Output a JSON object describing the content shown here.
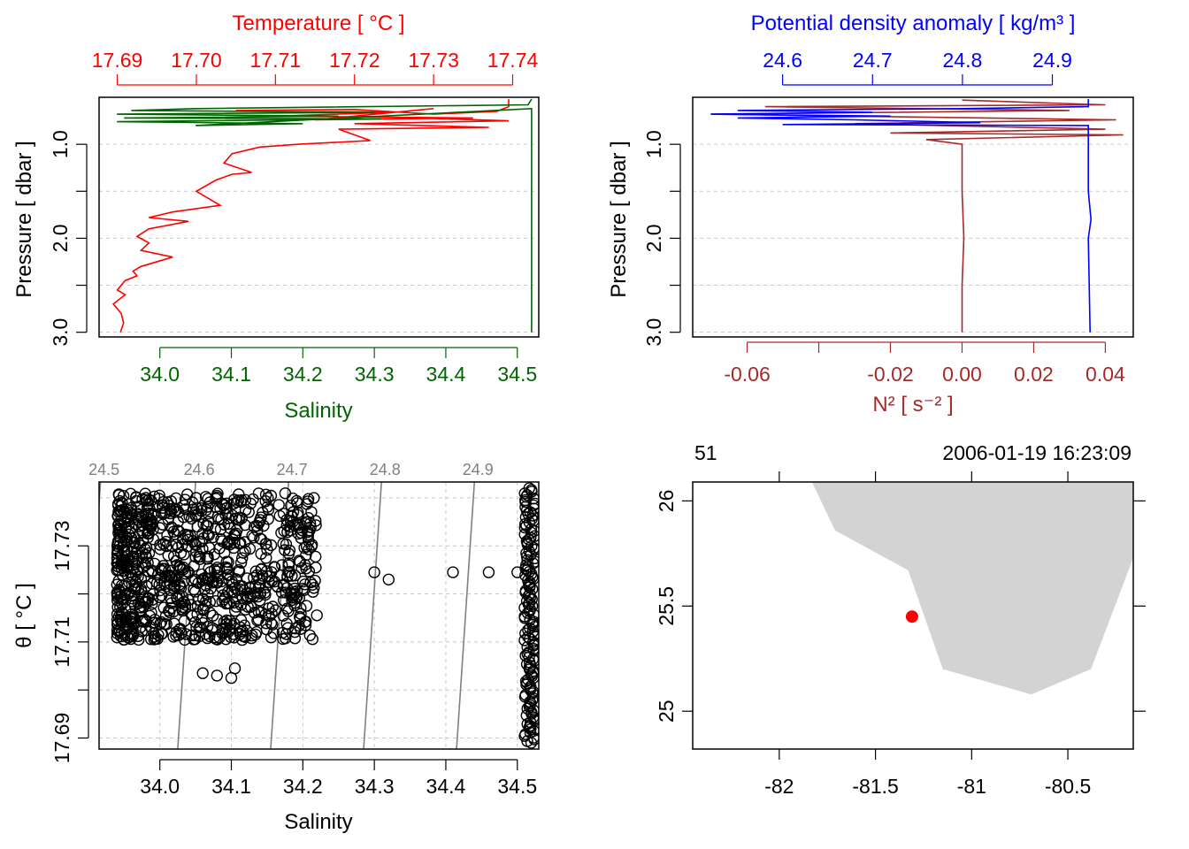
{
  "colors": {
    "temperature": "#ff0000",
    "salinity": "#006400",
    "density": "#0000ff",
    "n2": "#a52a2a",
    "isopycnal": "#808080",
    "land": "#d3d3d3",
    "station": "#ff0000",
    "grid": "#c8c8c8",
    "text": "#000000"
  },
  "chart_data": [
    {
      "type": "line",
      "panel": "T-S profile",
      "top_axis_label": "Temperature [ °C ]",
      "top_ticks": [
        "17.69",
        "17.70",
        "17.71",
        "17.72",
        "17.73",
        "17.74"
      ],
      "top_range": [
        17.6877,
        17.7433
      ],
      "bottom_axis_label": "Salinity",
      "bottom_ticks": [
        "34.0",
        "34.1",
        "34.2",
        "34.3",
        "34.4",
        "34.5"
      ],
      "bottom_range": [
        33.915,
        34.53
      ],
      "ylabel": "Pressure [ dbar ]",
      "y_ticks": [
        "1.0",
        "2.0",
        "3.0"
      ],
      "ylim": [
        3.05,
        0.5
      ],
      "series": [
        {
          "variable": "temperature",
          "points": [
            [
              17.7395,
              0.52
            ],
            [
              17.7395,
              0.6
            ],
            [
              17.738,
              0.65
            ],
            [
              17.73,
              0.68
            ],
            [
              17.72,
              0.63
            ],
            [
              17.705,
              0.64
            ],
            [
              17.725,
              0.66
            ],
            [
              17.71,
              0.7
            ],
            [
              17.735,
              0.72
            ],
            [
              17.715,
              0.74
            ],
            [
              17.73,
              0.62
            ],
            [
              17.72,
              0.7
            ],
            [
              17.7395,
              0.75
            ],
            [
              17.72,
              0.78
            ],
            [
              17.737,
              0.82
            ],
            [
              17.718,
              0.84
            ],
            [
              17.722,
              0.96
            ],
            [
              17.713,
              1.0
            ],
            [
              17.708,
              1.03
            ],
            [
              17.7045,
              1.1
            ],
            [
              17.7035,
              1.2
            ],
            [
              17.707,
              1.3
            ],
            [
              17.7045,
              1.32
            ],
            [
              17.7025,
              1.38
            ],
            [
              17.7,
              1.5
            ],
            [
              17.703,
              1.65
            ],
            [
              17.697,
              1.72
            ],
            [
              17.694,
              1.78
            ],
            [
              17.699,
              1.82
            ],
            [
              17.694,
              1.9
            ],
            [
              17.6925,
              1.98
            ],
            [
              17.694,
              2.05
            ],
            [
              17.693,
              2.13
            ],
            [
              17.697,
              2.2
            ],
            [
              17.693,
              2.3
            ],
            [
              17.692,
              2.35
            ],
            [
              17.6925,
              2.4
            ],
            [
              17.691,
              2.45
            ],
            [
              17.69,
              2.55
            ],
            [
              17.691,
              2.6
            ],
            [
              17.6895,
              2.7
            ],
            [
              17.6905,
              2.8
            ],
            [
              17.6908,
              2.9
            ],
            [
              17.6904,
              3.0
            ]
          ]
        },
        {
          "variable": "salinity",
          "points": [
            [
              34.52,
              0.52
            ],
            [
              34.515,
              0.58
            ],
            [
              34.05,
              0.62
            ],
            [
              33.96,
              0.64
            ],
            [
              34.3,
              0.66
            ],
            [
              33.94,
              0.68
            ],
            [
              34.25,
              0.7
            ],
            [
              33.95,
              0.72
            ],
            [
              34.31,
              0.73
            ],
            [
              33.94,
              0.76
            ],
            [
              34.2,
              0.78
            ],
            [
              34.05,
              0.8
            ],
            [
              34.52,
              0.62
            ],
            [
              34.52,
              0.7
            ],
            [
              34.52,
              1.0
            ],
            [
              34.52,
              1.5
            ],
            [
              34.52,
              2.0
            ],
            [
              34.52,
              2.5
            ],
            [
              34.52,
              3.0
            ]
          ]
        }
      ]
    },
    {
      "type": "line",
      "panel": "density and buoyancy frequency profile",
      "top_axis_label": "Potential density anomaly [ kg/m³ ]",
      "top_ticks": [
        "24.6",
        "24.7",
        "24.8",
        "24.9"
      ],
      "top_range": [
        24.5,
        24.99
      ],
      "bottom_axis_label": "N² [ s⁻² ]",
      "bottom_ticks": [
        "-0.06",
        "-0.02",
        "0.00",
        "0.02",
        "0.04"
      ],
      "bottom_range": [
        -0.0752,
        0.0478
      ],
      "ylabel": "Pressure [ dbar ]",
      "y_ticks": [
        "1.0",
        "2.0",
        "3.0"
      ],
      "ylim": [
        3.05,
        0.5
      ],
      "series": [
        {
          "variable": "potential density anomaly",
          "points": [
            [
              24.94,
              0.52
            ],
            [
              24.94,
              0.6
            ],
            [
              24.8,
              0.62
            ],
            [
              24.55,
              0.64
            ],
            [
              24.7,
              0.66
            ],
            [
              24.52,
              0.68
            ],
            [
              24.72,
              0.7
            ],
            [
              24.55,
              0.72
            ],
            [
              24.68,
              0.74
            ],
            [
              24.82,
              0.77
            ],
            [
              24.6,
              0.79
            ],
            [
              24.94,
              0.8
            ],
            [
              24.94,
              1.0
            ],
            [
              24.94,
              1.5
            ],
            [
              24.943,
              1.8
            ],
            [
              24.94,
              2.0
            ],
            [
              24.941,
              2.5
            ],
            [
              24.942,
              3.0
            ]
          ]
        },
        {
          "variable": "N2",
          "points": [
            [
              0.0,
              0.53
            ],
            [
              0.04,
              0.58
            ],
            [
              -0.055,
              0.6
            ],
            [
              0.03,
              0.64
            ],
            [
              -0.07,
              0.68
            ],
            [
              0.043,
              0.74
            ],
            [
              -0.03,
              0.78
            ],
            [
              0.04,
              0.84
            ],
            [
              -0.02,
              0.88
            ],
            [
              0.045,
              0.9
            ],
            [
              -0.01,
              0.95
            ],
            [
              0.0,
              1.0
            ],
            [
              0.0,
              1.5
            ],
            [
              0.0005,
              2.0
            ],
            [
              0.0,
              2.5
            ],
            [
              0.0,
              3.0
            ]
          ]
        }
      ]
    },
    {
      "type": "scatter",
      "panel": "T-S diagram",
      "xlabel": "Salinity",
      "ylabel": "θ [ °C ]",
      "x_ticks": [
        "34.0",
        "34.1",
        "34.2",
        "34.3",
        "34.4",
        "34.5"
      ],
      "y_ticks": [
        "17.69",
        "17.71",
        "17.73"
      ],
      "xlim": [
        33.915,
        34.53
      ],
      "ylim": [
        17.6877,
        17.7433
      ],
      "isopycnal_labels": [
        "24.5",
        "24.6",
        "24.7",
        "24.8",
        "24.9"
      ],
      "isopycnals": [
        {
          "label": "24.5",
          "bottom_salinity": 33.892,
          "top_salinity": 33.917
        },
        {
          "label": "24.6",
          "bottom_salinity": 34.025,
          "top_salinity": 34.05
        },
        {
          "label": "24.7",
          "bottom_salinity": 34.155,
          "top_salinity": 34.18
        },
        {
          "label": "24.8",
          "bottom_salinity": 34.285,
          "top_salinity": 34.31
        },
        {
          "label": "24.9",
          "bottom_salinity": 34.415,
          "top_salinity": 34.44
        }
      ],
      "point_clusters": [
        {
          "salinity_range": [
            33.94,
            34.22
          ],
          "temperature_range": [
            17.705,
            17.741
          ],
          "count": 900
        },
        {
          "salinity_range": [
            34.51,
            34.525
          ],
          "temperature_range": [
            17.689,
            17.742
          ],
          "count": 150
        }
      ],
      "points_notable": [
        [
          34.3,
          17.7245
        ],
        [
          34.32,
          17.723
        ],
        [
          34.41,
          17.7245
        ],
        [
          34.46,
          17.7245
        ],
        [
          34.5,
          17.7245
        ],
        [
          34.1,
          17.7025
        ],
        [
          34.08,
          17.703
        ],
        [
          34.105,
          17.7045
        ],
        [
          34.06,
          17.7035
        ]
      ]
    },
    {
      "type": "map",
      "panel": "station map",
      "top_left_label": "51",
      "top_right_label": "2006-01-19 16:23:09",
      "x_ticks": [
        "-82",
        "-81.5",
        "-81",
        "-80.5"
      ],
      "y_ticks": [
        "25",
        "25.5",
        "26"
      ],
      "xlim": [
        -82.45,
        -80.16
      ],
      "ylim": [
        24.82,
        26.09
      ],
      "land_polygon": [
        [
          -81.83,
          26.09
        ],
        [
          -81.71,
          25.86
        ],
        [
          -81.33,
          25.67
        ],
        [
          -81.15,
          25.2
        ],
        [
          -80.69,
          25.08
        ],
        [
          -80.38,
          25.2
        ],
        [
          -80.16,
          25.73
        ],
        [
          -80.16,
          26.09
        ]
      ],
      "station": {
        "longitude": -81.31,
        "latitude": 25.45
      }
    }
  ]
}
